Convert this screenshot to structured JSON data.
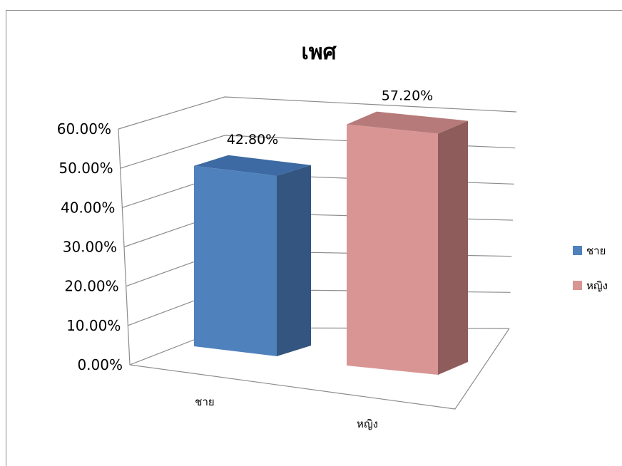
{
  "chart_data": {
    "type": "bar",
    "title": "เพศ",
    "categories": [
      "ชาย",
      "หญิง"
    ],
    "values": [
      42.8,
      57.2
    ],
    "value_labels": [
      "42.80%",
      "57.20%"
    ],
    "y_ticks": [
      "0.00%",
      "10.00%",
      "20.00%",
      "30.00%",
      "40.00%",
      "50.00%",
      "60.00%"
    ],
    "ylim": [
      0,
      60
    ],
    "grid": true,
    "three_d": true,
    "legend_position": "right",
    "legend": [
      {
        "label": "ชาย",
        "color": "#4f81bd"
      },
      {
        "label": "หญิง",
        "color": "#d99594"
      }
    ],
    "colors": {
      "blue_front": "#4f81bd",
      "blue_top": "#3e6aa3",
      "blue_side": "#33557f",
      "pink_front": "#d99594",
      "pink_top": "#b77a7a",
      "pink_side": "#8f5c5c"
    }
  }
}
